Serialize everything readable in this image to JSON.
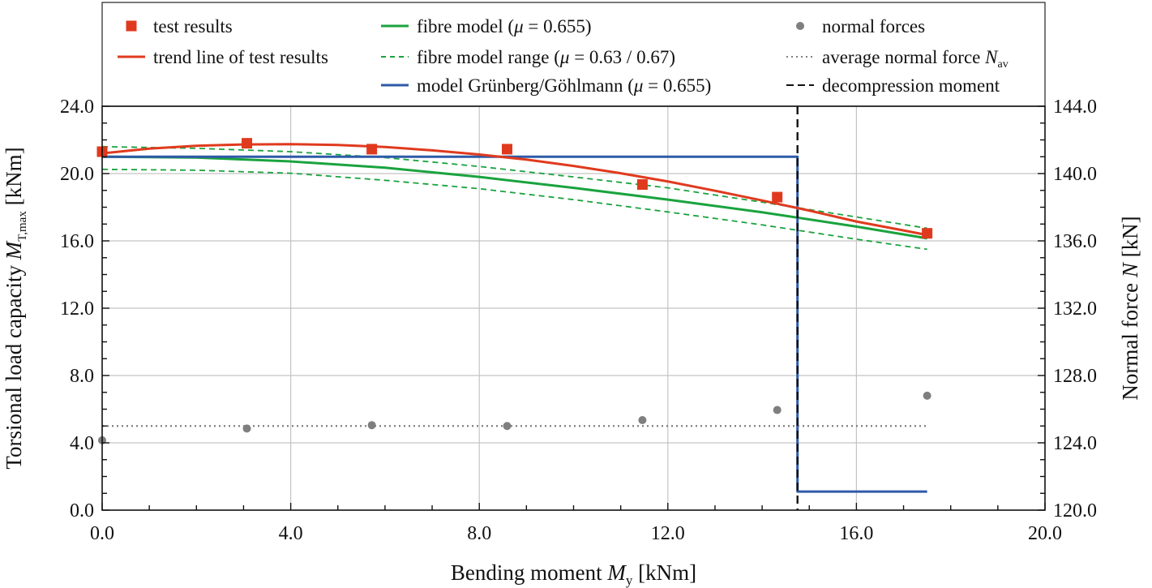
{
  "chart_data": {
    "type": "line",
    "xlabel": {
      "text": "Bending moment ",
      "var": "M",
      "sub": "y",
      "unit": " [kNm]"
    },
    "ylabel": {
      "text": "Torsional load capacity ",
      "var": "M",
      "sub": "T,max",
      "unit": " [kNm]"
    },
    "y2label": {
      "text": "Normal force ",
      "var": "N",
      "unit": " [kN]"
    },
    "xlim": [
      0,
      20
    ],
    "ylim": [
      0,
      24
    ],
    "y2lim": [
      120,
      144
    ],
    "xticks": [
      "0.0",
      "4.0",
      "8.0",
      "12.0",
      "16.0",
      "20.0"
    ],
    "yticks": [
      "0.0",
      "4.0",
      "8.0",
      "12.0",
      "16.0",
      "20.0",
      "24.0"
    ],
    "y2ticks": [
      "120.0",
      "124.0",
      "128.0",
      "132.0",
      "136.0",
      "140.0",
      "144.0"
    ],
    "grid": true,
    "legend_position": "top",
    "legend": [
      {
        "label": "test results",
        "symbol": "square",
        "color": "#e03a1e"
      },
      {
        "label": "trend line of test results",
        "symbol": "line",
        "color": "#e03a1e"
      },
      {
        "label": "fibre model (",
        "mu": "μ",
        "suffix": " = 0.655)",
        "symbol": "line",
        "color": "#1aa33e"
      },
      {
        "label": "fibre model range (",
        "mu": "μ",
        "suffix": " = 0.63 / 0.67)",
        "symbol": "dashed",
        "color": "#1aa33e"
      },
      {
        "label": "model Grünberg/Göhlmann (",
        "mu": "μ",
        "suffix": " = 0.655)",
        "symbol": "line",
        "color": "#2e5aa8"
      },
      {
        "label": "normal forces",
        "symbol": "circle",
        "color": "#7f7f7f"
      },
      {
        "label": "average normal force ",
        "var": "N",
        "sub": "av",
        "symbol": "dotted",
        "color": "#7f7f7f"
      },
      {
        "label": "decompression moment",
        "symbol": "longdash",
        "color": "#111111"
      }
    ],
    "series": [
      {
        "name": "test results",
        "kind": "points",
        "color": "#e03a1e",
        "x": [
          0.0,
          3.07,
          5.72,
          8.59,
          11.46,
          14.32,
          17.5
        ],
        "y": [
          21.3,
          21.8,
          21.45,
          21.45,
          19.35,
          18.6,
          16.45
        ]
      },
      {
        "name": "trend line of test results",
        "kind": "line",
        "color": "#e03a1e",
        "x": [
          0,
          1,
          2,
          3,
          4,
          5,
          6,
          7,
          8,
          9,
          10,
          11,
          12,
          13,
          14,
          15,
          16,
          17,
          17.5
        ],
        "y": [
          21.2,
          21.48,
          21.65,
          21.73,
          21.75,
          21.7,
          21.58,
          21.38,
          21.13,
          20.83,
          20.45,
          20.02,
          19.53,
          18.98,
          18.4,
          17.8,
          17.15,
          16.62,
          16.35
        ]
      },
      {
        "name": "fibre model (μ = 0.655)",
        "kind": "line",
        "color": "#1aa33e",
        "x": [
          0,
          2,
          4,
          6,
          8,
          10,
          12,
          14,
          16,
          17.5
        ],
        "y": [
          21.0,
          20.95,
          20.72,
          20.35,
          19.8,
          19.15,
          18.45,
          17.7,
          16.85,
          16.15
        ]
      },
      {
        "name": "fibre model range upper (μ = 0.67)",
        "kind": "dashed",
        "color": "#1aa33e",
        "x": [
          0,
          2,
          4,
          6,
          8,
          10,
          12,
          14,
          16,
          17.5
        ],
        "y": [
          21.6,
          21.5,
          21.3,
          20.95,
          20.42,
          19.8,
          19.15,
          18.3,
          17.42,
          16.75
        ]
      },
      {
        "name": "fibre model range lower (μ = 0.63)",
        "kind": "dashed",
        "color": "#1aa33e",
        "x": [
          0,
          2,
          4,
          6,
          8,
          10,
          12,
          14,
          16,
          17.5
        ],
        "y": [
          20.25,
          20.2,
          20.02,
          19.6,
          19.1,
          18.45,
          17.72,
          16.95,
          16.1,
          15.5
        ]
      },
      {
        "name": "model Grünberg/Göhlmann (μ = 0.655)",
        "kind": "line",
        "color": "#2e5aa8",
        "x": [
          0,
          14.75,
          14.75,
          17.5
        ],
        "y": [
          21.0,
          21.0,
          1.1,
          1.1
        ]
      },
      {
        "name": "normal forces",
        "kind": "points",
        "axis": "right",
        "color": "#7f7f7f",
        "x": [
          0.0,
          3.07,
          5.72,
          8.59,
          11.46,
          14.32,
          17.5
        ],
        "y": [
          124.15,
          124.85,
          125.05,
          125.0,
          125.35,
          125.95,
          126.8
        ]
      },
      {
        "name": "average normal force N_av",
        "kind": "dotted",
        "axis": "right",
        "color": "#7f7f7f",
        "x": [
          0,
          17.5
        ],
        "y": [
          125.0,
          125.0
        ]
      },
      {
        "name": "decompression moment",
        "kind": "vline",
        "color": "#111111",
        "x": 14.75
      }
    ]
  }
}
